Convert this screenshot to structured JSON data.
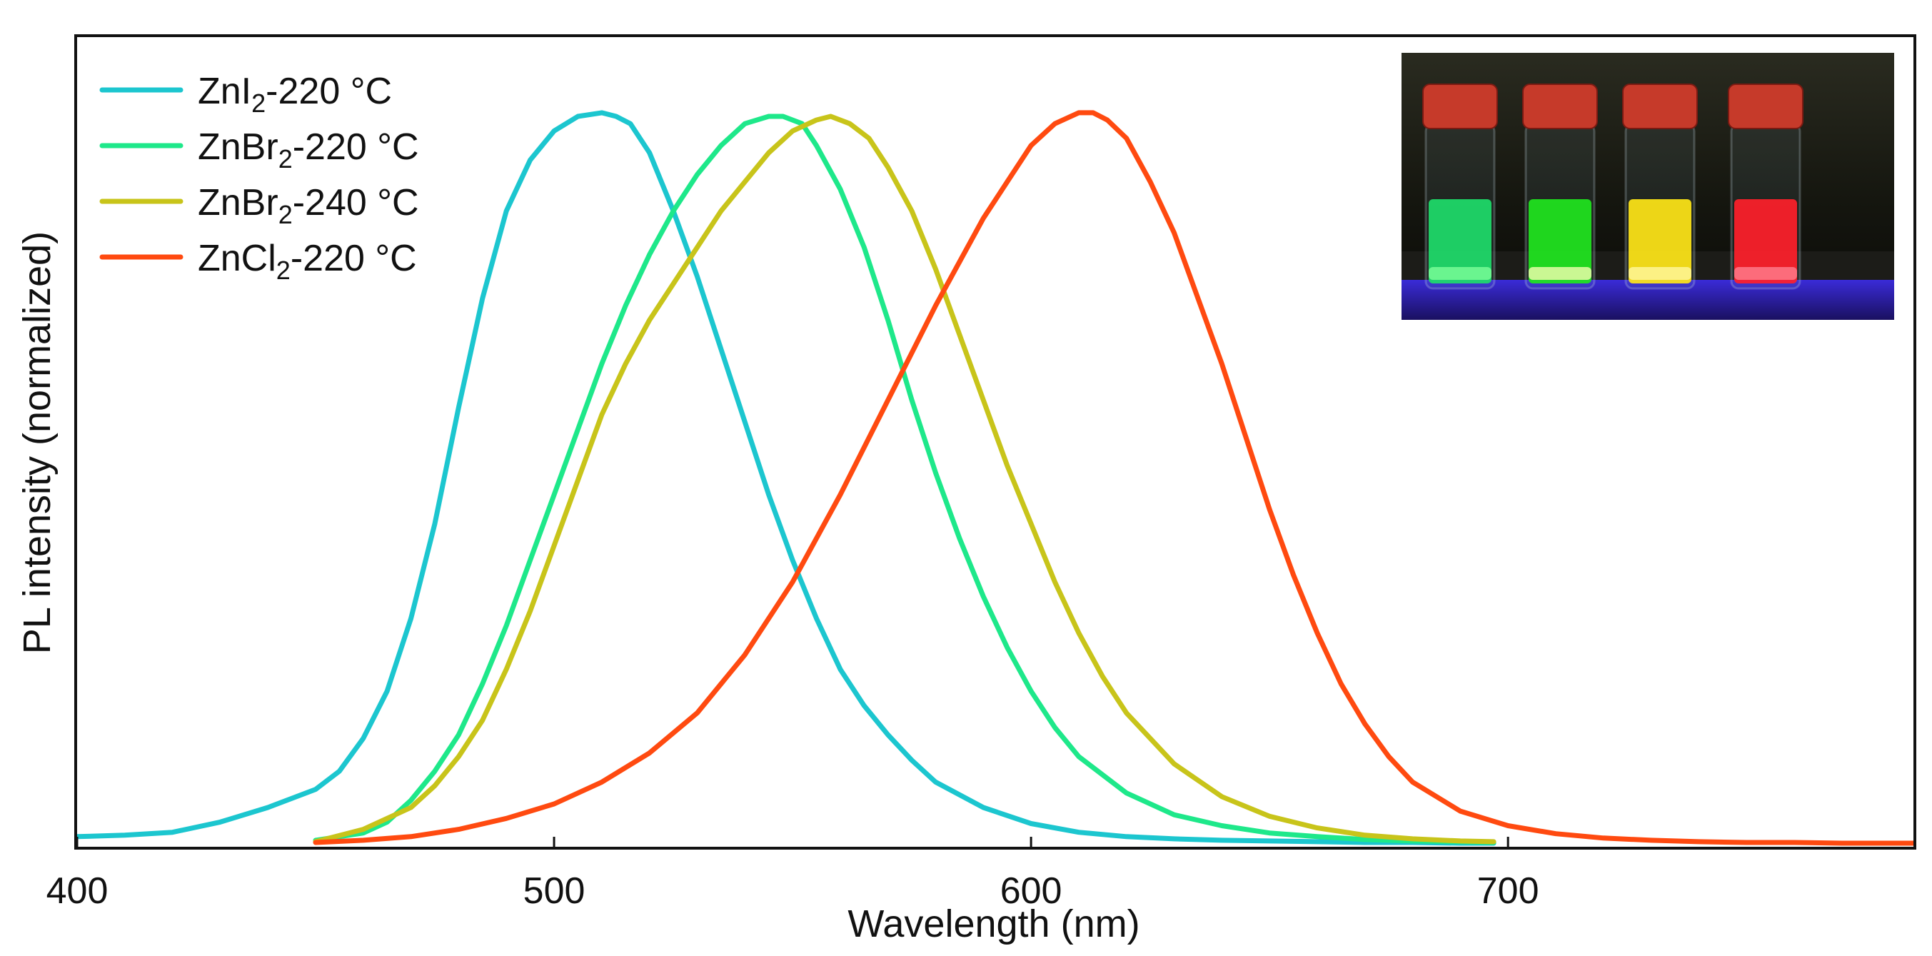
{
  "chart_data": {
    "type": "line",
    "title": "",
    "xlabel": "Wavelength (nm)",
    "ylabel": "PL intensity (normalized)",
    "xlim": [
      400,
      785
    ],
    "ylim": [
      0,
      1.03
    ],
    "x_ticks": [
      400,
      500,
      600,
      700
    ],
    "x_tick_labels": [
      "400",
      "500",
      "600",
      "700"
    ],
    "grid": false,
    "legend_position": "top-left",
    "series": [
      {
        "name": "ZnI2-220 °C",
        "label_main": "ZnI",
        "label_sub": "2",
        "label_tail": "-220 °C",
        "color": "#1cc6cf",
        "x": [
          400,
          410,
          420,
          430,
          440,
          450,
          455,
          460,
          465,
          470,
          475,
          480,
          485,
          490,
          495,
          500,
          505,
          510,
          513,
          516,
          520,
          525,
          530,
          535,
          540,
          545,
          550,
          555,
          560,
          565,
          570,
          575,
          580,
          590,
          600,
          610,
          620,
          630,
          640,
          650,
          660,
          670,
          680,
          690,
          697
        ],
        "y": [
          0.01,
          0.012,
          0.016,
          0.03,
          0.05,
          0.075,
          0.1,
          0.145,
          0.21,
          0.31,
          0.44,
          0.6,
          0.75,
          0.87,
          0.94,
          0.98,
          1.0,
          1.005,
          1.0,
          0.99,
          0.95,
          0.87,
          0.78,
          0.68,
          0.58,
          0.48,
          0.39,
          0.31,
          0.24,
          0.19,
          0.15,
          0.115,
          0.085,
          0.05,
          0.028,
          0.016,
          0.01,
          0.007,
          0.005,
          0.004,
          0.003,
          0.002,
          0.002,
          0.001,
          0.001
        ]
      },
      {
        "name": "ZnBr2-220 °C",
        "label_main": "ZnBr",
        "label_sub": "2",
        "label_tail": "-220 °C",
        "color": "#1ee88a",
        "x": [
          450,
          460,
          465,
          470,
          475,
          480,
          485,
          490,
          495,
          500,
          505,
          510,
          515,
          520,
          525,
          530,
          535,
          540,
          545,
          548,
          552,
          555,
          560,
          565,
          570,
          575,
          580,
          585,
          590,
          595,
          600,
          605,
          610,
          620,
          630,
          640,
          650,
          660,
          670,
          680,
          690,
          697
        ],
        "y": [
          0.005,
          0.015,
          0.03,
          0.06,
          0.1,
          0.15,
          0.22,
          0.3,
          0.39,
          0.48,
          0.57,
          0.66,
          0.74,
          0.81,
          0.87,
          0.92,
          0.96,
          0.99,
          1.0,
          1.0,
          0.99,
          0.96,
          0.9,
          0.82,
          0.72,
          0.61,
          0.51,
          0.42,
          0.34,
          0.27,
          0.21,
          0.16,
          0.12,
          0.07,
          0.04,
          0.025,
          0.015,
          0.01,
          0.006,
          0.004,
          0.003,
          0.002
        ]
      },
      {
        "name": "ZnBr2-240 °C",
        "label_main": "ZnBr",
        "label_sub": "2",
        "label_tail": "-240 °C",
        "color": "#c8c41a",
        "x": [
          450,
          460,
          470,
          475,
          480,
          485,
          490,
          495,
          500,
          505,
          510,
          515,
          520,
          525,
          530,
          535,
          540,
          545,
          550,
          555,
          558,
          562,
          566,
          570,
          575,
          580,
          585,
          590,
          595,
          600,
          605,
          610,
          615,
          620,
          630,
          640,
          650,
          660,
          670,
          680,
          690,
          697
        ],
        "y": [
          0.003,
          0.02,
          0.05,
          0.08,
          0.12,
          0.17,
          0.24,
          0.32,
          0.41,
          0.5,
          0.59,
          0.66,
          0.72,
          0.77,
          0.82,
          0.87,
          0.91,
          0.95,
          0.98,
          0.995,
          1.0,
          0.99,
          0.97,
          0.93,
          0.87,
          0.79,
          0.7,
          0.61,
          0.52,
          0.44,
          0.36,
          0.29,
          0.23,
          0.18,
          0.11,
          0.065,
          0.038,
          0.022,
          0.012,
          0.007,
          0.004,
          0.003
        ]
      },
      {
        "name": "ZnCl2-220 °C",
        "label_main": "ZnCl",
        "label_sub": "2",
        "label_tail": "-220 °C",
        "color": "#ff4a10",
        "x": [
          450,
          460,
          470,
          480,
          490,
          500,
          510,
          520,
          530,
          540,
          550,
          560,
          570,
          580,
          590,
          595,
          600,
          605,
          610,
          613,
          616,
          620,
          625,
          630,
          635,
          640,
          645,
          650,
          655,
          660,
          665,
          670,
          675,
          680,
          690,
          700,
          710,
          720,
          730,
          740,
          750,
          760,
          770,
          780,
          785
        ],
        "y": [
          0.002,
          0.005,
          0.01,
          0.02,
          0.035,
          0.055,
          0.085,
          0.125,
          0.18,
          0.26,
          0.36,
          0.48,
          0.61,
          0.74,
          0.86,
          0.91,
          0.96,
          0.99,
          1.005,
          1.005,
          0.995,
          0.97,
          0.91,
          0.84,
          0.75,
          0.66,
          0.56,
          0.46,
          0.37,
          0.29,
          0.22,
          0.165,
          0.12,
          0.085,
          0.045,
          0.025,
          0.014,
          0.008,
          0.005,
          0.003,
          0.002,
          0.002,
          0.001,
          0.001,
          0.001
        ]
      }
    ],
    "inset": {
      "vials": [
        {
          "liquid_color": "#1edc6a",
          "glow_color": "#7dff9a"
        },
        {
          "liquid_color": "#20e61e",
          "glow_color": "#f5ffb0"
        },
        {
          "liquid_color": "#ffe617",
          "glow_color": "#fff7a0"
        },
        {
          "liquid_color": "#ff1f2a",
          "glow_color": "#ff8090"
        }
      ]
    }
  }
}
